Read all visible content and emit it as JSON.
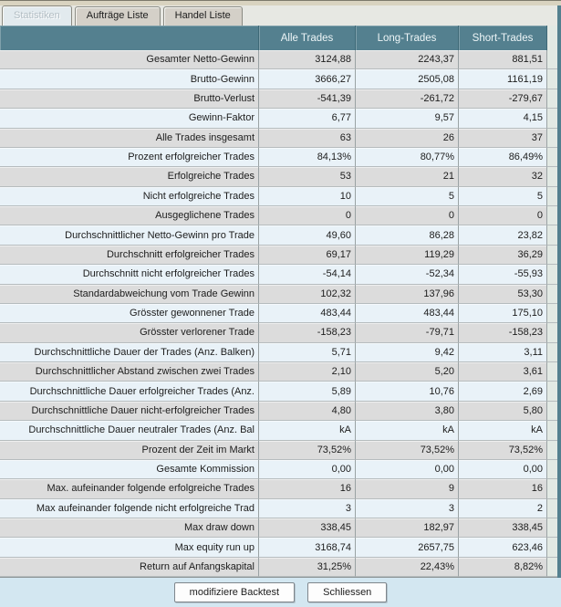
{
  "tabs": [
    {
      "label": "Statistiken",
      "active": true
    },
    {
      "label": "Aufträge Liste",
      "active": false
    },
    {
      "label": "Handel Liste",
      "active": false
    }
  ],
  "table": {
    "columns": [
      "Alle Trades",
      "Long-Trades",
      "Short-Trades"
    ],
    "rows": [
      {
        "label": "Gesamter Netto-Gewinn",
        "values": [
          "3124,88",
          "2243,37",
          "881,51"
        ]
      },
      {
        "label": "Brutto-Gewinn",
        "values": [
          "3666,27",
          "2505,08",
          "1161,19"
        ]
      },
      {
        "label": "Brutto-Verlust",
        "values": [
          "-541,39",
          "-261,72",
          "-279,67"
        ]
      },
      {
        "label": "Gewinn-Faktor",
        "values": [
          "6,77",
          "9,57",
          "4,15"
        ]
      },
      {
        "label": "Alle Trades insgesamt",
        "values": [
          "63",
          "26",
          "37"
        ]
      },
      {
        "label": "Prozent erfolgreicher Trades",
        "values": [
          "84,13%",
          "80,77%",
          "86,49%"
        ]
      },
      {
        "label": "Erfolgreiche Trades",
        "values": [
          "53",
          "21",
          "32"
        ]
      },
      {
        "label": "Nicht erfolgreiche Trades",
        "values": [
          "10",
          "5",
          "5"
        ]
      },
      {
        "label": "Ausgeglichene Trades",
        "values": [
          "0",
          "0",
          "0"
        ]
      },
      {
        "label": "Durchschnittlicher Netto-Gewinn pro Trade",
        "values": [
          "49,60",
          "86,28",
          "23,82"
        ]
      },
      {
        "label": "Durchschnitt erfolgreicher Trades",
        "values": [
          "69,17",
          "119,29",
          "36,29"
        ]
      },
      {
        "label": "Durchschnitt nicht erfolgreicher Trades",
        "values": [
          "-54,14",
          "-52,34",
          "-55,93"
        ]
      },
      {
        "label": "Standardabweichung vom Trade Gewinn",
        "values": [
          "102,32",
          "137,96",
          "53,30"
        ]
      },
      {
        "label": "Grösster gewonnener Trade",
        "values": [
          "483,44",
          "483,44",
          "175,10"
        ]
      },
      {
        "label": "Grösster verlorener Trade",
        "values": [
          "-158,23",
          "-79,71",
          "-158,23"
        ]
      },
      {
        "label": "Durchschnittliche Dauer der Trades (Anz. Balken)",
        "values": [
          "5,71",
          "9,42",
          "3,11"
        ]
      },
      {
        "label": "Durchschnittlicher Abstand zwischen zwei Trades",
        "values": [
          "2,10",
          "5,20",
          "3,61"
        ]
      },
      {
        "label": "Durchschnittliche Dauer erfolgreicher Trades (Anz.",
        "values": [
          "5,89",
          "10,76",
          "2,69"
        ]
      },
      {
        "label": "Durchschnittliche Dauer nicht-erfolgreicher Trades",
        "values": [
          "4,80",
          "3,80",
          "5,80"
        ]
      },
      {
        "label": "Durchschnittliche Dauer neutraler Trades (Anz. Bal",
        "values": [
          "kA",
          "kA",
          "kA"
        ]
      },
      {
        "label": "Prozent der Zeit im Markt",
        "values": [
          "73,52%",
          "73,52%",
          "73,52%"
        ]
      },
      {
        "label": "Gesamte Kommission",
        "values": [
          "0,00",
          "0,00",
          "0,00"
        ]
      },
      {
        "label": "Max. aufeinander folgende erfolgreiche Trades",
        "values": [
          "16",
          "9",
          "16"
        ]
      },
      {
        "label": "Max aufeinander folgende nicht erfolgreiche Trad",
        "values": [
          "3",
          "3",
          "2"
        ]
      },
      {
        "label": "Max draw down",
        "values": [
          "338,45",
          "182,97",
          "338,45"
        ]
      },
      {
        "label": "Max equity run up",
        "values": [
          "3168,74",
          "2657,75",
          "623,46"
        ]
      },
      {
        "label": "Return auf Anfangskapital",
        "values": [
          "31,25%",
          "22,43%",
          "8,82%"
        ]
      }
    ]
  },
  "buttons": {
    "modify_label": "modifiziere Backtest",
    "close_label": "Schliessen"
  },
  "colors": {
    "header_bg": "#54808F",
    "header_text": "#EDF5F7",
    "row_odd": "#DCDCDC",
    "row_even": "#E9F2F8",
    "page_edge": "#54808F",
    "bottom_bg": "#D3E7F1",
    "top_strip": "#D9D3C0",
    "tab_bg": "#D4D0C8",
    "tabbar_bg": "#E7E8E3"
  }
}
